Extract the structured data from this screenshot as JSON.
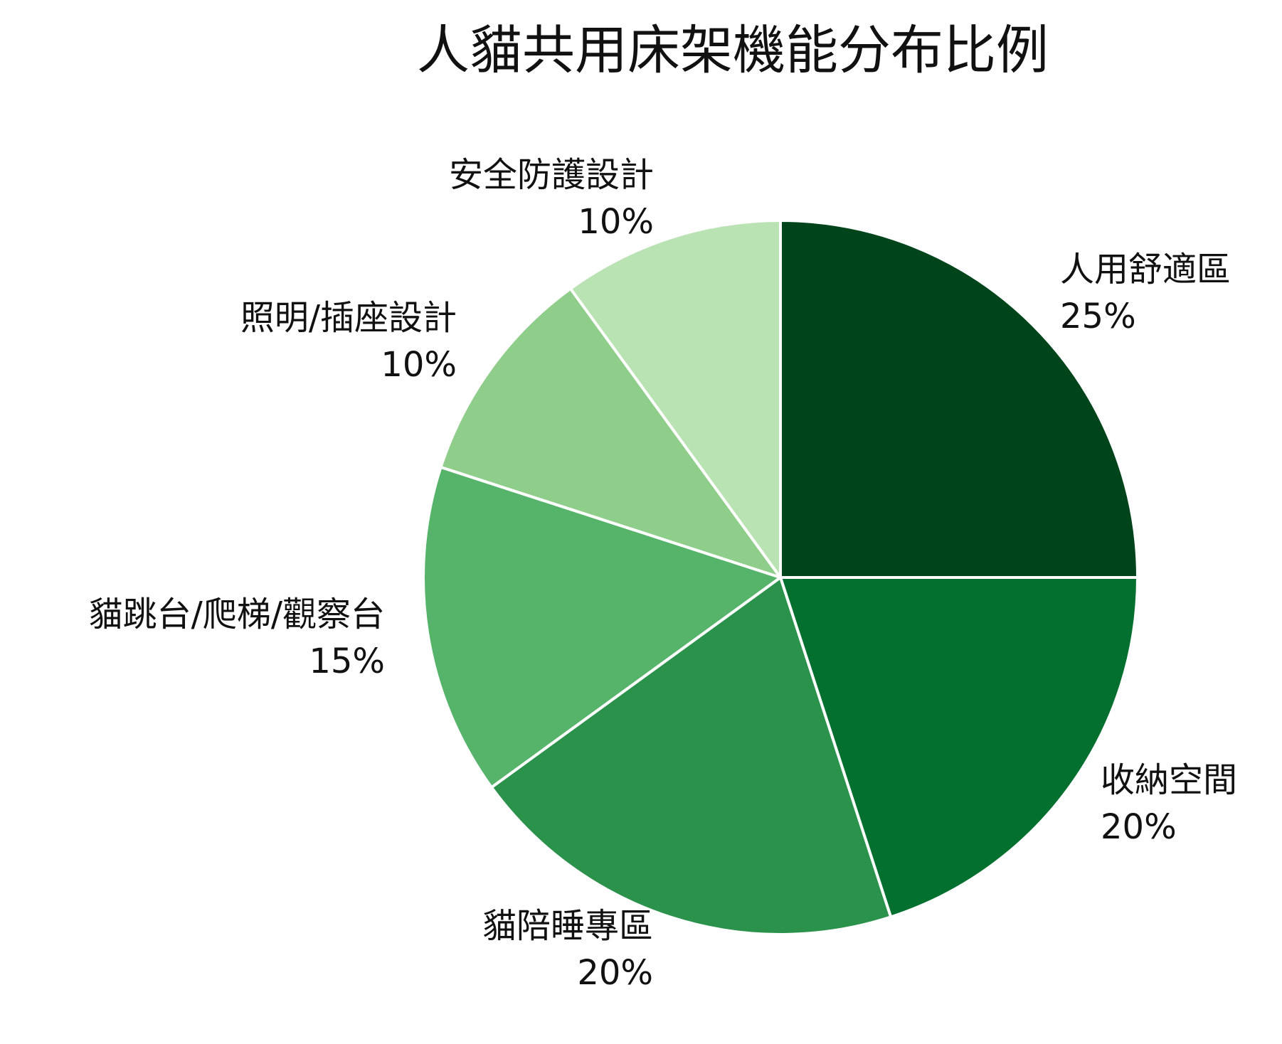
{
  "chart_data": {
    "type": "pie",
    "title": "人貓共用床架機能分布比例",
    "start_angle": "12 o'clock",
    "direction": "clockwise",
    "value_suffix": "%",
    "slices": [
      {
        "label": "人用舒適區",
        "value": 25,
        "color": "#00441b"
      },
      {
        "label": "收納空間",
        "value": 20,
        "color": "#04702f"
      },
      {
        "label": "貓陪睡專區",
        "value": 20,
        "color": "#2b924c"
      },
      {
        "label": "貓跳台/爬梯/觀察台",
        "value": 15,
        "color": "#56b36a"
      },
      {
        "label": "照明/插座設計",
        "value": 10,
        "color": "#8fce8a"
      },
      {
        "label": "安全防護設計",
        "value": 10,
        "color": "#b9e3b2"
      }
    ],
    "slice_border_color": "#ffffff"
  }
}
